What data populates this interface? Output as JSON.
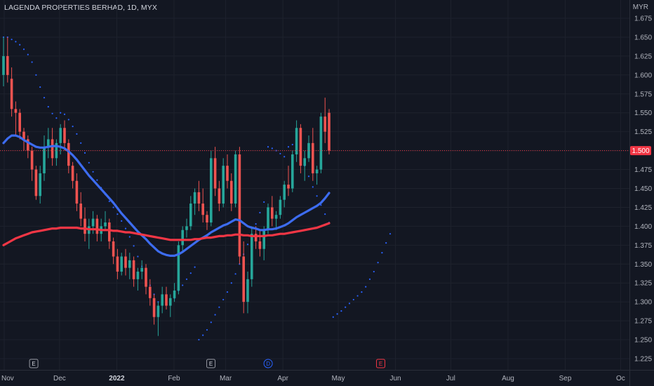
{
  "chart_data": {
    "type": "candlestick",
    "title": "LAGENDA PROPERTIES BERHAD, 1D, MYX",
    "currency": "MYR",
    "last_price": "1.500",
    "y_ticks": [
      "1.675",
      "1.650",
      "1.625",
      "1.600",
      "1.575",
      "1.550",
      "1.525",
      "1.475",
      "1.450",
      "1.425",
      "1.400",
      "1.375",
      "1.350",
      "1.325",
      "1.300",
      "1.275",
      "1.250",
      "1.225"
    ],
    "ylim": [
      1.215,
      1.685
    ],
    "x_ticks": [
      {
        "label": "Nov",
        "day": 0
      },
      {
        "label": "Dec",
        "day": 30
      },
      {
        "label": "2022",
        "day": 61,
        "bold": true
      },
      {
        "label": "Feb",
        "day": 92
      },
      {
        "label": "Mar",
        "day": 120
      },
      {
        "label": "Apr",
        "day": 151
      },
      {
        "label": "May",
        "day": 181
      },
      {
        "label": "Jun",
        "day": 212
      },
      {
        "label": "Jul",
        "day": 242
      },
      {
        "label": "Aug",
        "day": 273
      },
      {
        "label": "Sep",
        "day": 304
      },
      {
        "label": "Oc",
        "day": 334
      }
    ],
    "events": [
      {
        "label": "E",
        "day": 16,
        "kind": "earnings"
      },
      {
        "label": "E",
        "day": 112,
        "kind": "earnings"
      },
      {
        "label": "D",
        "day": 143,
        "kind": "dividend"
      },
      {
        "label": "E",
        "day": 204,
        "kind": "earnings-upcoming"
      }
    ],
    "candles": [
      [
        1.6,
        1.65,
        1.585,
        1.625
      ],
      [
        1.625,
        1.65,
        1.59,
        1.6
      ],
      [
        1.595,
        1.61,
        1.545,
        1.555
      ],
      [
        1.555,
        1.565,
        1.52,
        1.55
      ],
      [
        1.55,
        1.555,
        1.515,
        1.525
      ],
      [
        1.525,
        1.53,
        1.5,
        1.515
      ],
      [
        1.515,
        1.52,
        1.49,
        1.5
      ],
      [
        1.5,
        1.505,
        1.46,
        1.475
      ],
      [
        1.475,
        1.48,
        1.435,
        1.44
      ],
      [
        1.44,
        1.48,
        1.43,
        1.47
      ],
      [
        1.47,
        1.52,
        1.46,
        1.505
      ],
      [
        1.505,
        1.53,
        1.49,
        1.515
      ],
      [
        1.515,
        1.53,
        1.48,
        1.49
      ],
      [
        1.49,
        1.515,
        1.48,
        1.51
      ],
      [
        1.51,
        1.535,
        1.495,
        1.53
      ],
      [
        1.53,
        1.54,
        1.5,
        1.51
      ],
      [
        1.51,
        1.515,
        1.47,
        1.48
      ],
      [
        1.48,
        1.485,
        1.45,
        1.46
      ],
      [
        1.46,
        1.47,
        1.42,
        1.43
      ],
      [
        1.43,
        1.445,
        1.4,
        1.41
      ],
      [
        1.41,
        1.425,
        1.38,
        1.39
      ],
      [
        1.39,
        1.41,
        1.37,
        1.4
      ],
      [
        1.4,
        1.42,
        1.39,
        1.41
      ],
      [
        1.41,
        1.415,
        1.38,
        1.39
      ],
      [
        1.39,
        1.41,
        1.38,
        1.4
      ],
      [
        1.4,
        1.42,
        1.395,
        1.405
      ],
      [
        1.405,
        1.41,
        1.37,
        1.38
      ],
      [
        1.38,
        1.385,
        1.35,
        1.36
      ],
      [
        1.36,
        1.37,
        1.33,
        1.34
      ],
      [
        1.34,
        1.365,
        1.335,
        1.36
      ],
      [
        1.36,
        1.37,
        1.335,
        1.345
      ],
      [
        1.345,
        1.365,
        1.33,
        1.355
      ],
      [
        1.355,
        1.36,
        1.32,
        1.33
      ],
      [
        1.33,
        1.345,
        1.315,
        1.34
      ],
      [
        1.34,
        1.355,
        1.33,
        1.345
      ],
      [
        1.345,
        1.35,
        1.31,
        1.32
      ],
      [
        1.32,
        1.33,
        1.295,
        1.305
      ],
      [
        1.305,
        1.31,
        1.27,
        1.28
      ],
      [
        1.28,
        1.3,
        1.255,
        1.295
      ],
      [
        1.295,
        1.32,
        1.285,
        1.31
      ],
      [
        1.31,
        1.32,
        1.29,
        1.295
      ],
      [
        1.295,
        1.31,
        1.28,
        1.305
      ],
      [
        1.305,
        1.325,
        1.3,
        1.315
      ],
      [
        1.315,
        1.38,
        1.31,
        1.375
      ],
      [
        1.375,
        1.4,
        1.365,
        1.395
      ],
      [
        1.395,
        1.41,
        1.385,
        1.4
      ],
      [
        1.4,
        1.44,
        1.395,
        1.43
      ],
      [
        1.43,
        1.45,
        1.415,
        1.445
      ],
      [
        1.445,
        1.46,
        1.42,
        1.43
      ],
      [
        1.43,
        1.45,
        1.405,
        1.415
      ],
      [
        1.415,
        1.42,
        1.395,
        1.405
      ],
      [
        1.405,
        1.5,
        1.4,
        1.49
      ],
      [
        1.49,
        1.505,
        1.44,
        1.45
      ],
      [
        1.45,
        1.46,
        1.42,
        1.43
      ],
      [
        1.43,
        1.49,
        1.425,
        1.48
      ],
      [
        1.48,
        1.495,
        1.45,
        1.46
      ],
      [
        1.46,
        1.47,
        1.42,
        1.43
      ],
      [
        1.43,
        1.5,
        1.425,
        1.495
      ],
      [
        1.495,
        1.505,
        1.35,
        1.36
      ],
      [
        1.36,
        1.38,
        1.285,
        1.3
      ],
      [
        1.3,
        1.34,
        1.285,
        1.33
      ],
      [
        1.33,
        1.4,
        1.32,
        1.39
      ],
      [
        1.39,
        1.4,
        1.37,
        1.38
      ],
      [
        1.38,
        1.395,
        1.36,
        1.37
      ],
      [
        1.37,
        1.4,
        1.355,
        1.395
      ],
      [
        1.395,
        1.43,
        1.39,
        1.425
      ],
      [
        1.425,
        1.44,
        1.4,
        1.41
      ],
      [
        1.41,
        1.42,
        1.395,
        1.415
      ],
      [
        1.415,
        1.44,
        1.41,
        1.435
      ],
      [
        1.435,
        1.46,
        1.425,
        1.455
      ],
      [
        1.455,
        1.48,
        1.44,
        1.45
      ],
      [
        1.45,
        1.5,
        1.445,
        1.495
      ],
      [
        1.495,
        1.54,
        1.485,
        1.53
      ],
      [
        1.53,
        1.535,
        1.47,
        1.48
      ],
      [
        1.48,
        1.5,
        1.46,
        1.49
      ],
      [
        1.49,
        1.52,
        1.485,
        1.51
      ],
      [
        1.51,
        1.53,
        1.46,
        1.47
      ],
      [
        1.47,
        1.48,
        1.455,
        1.475
      ],
      [
        1.475,
        1.55,
        1.47,
        1.545
      ],
      [
        1.545,
        1.57,
        1.51,
        1.525
      ],
      [
        1.55,
        1.555,
        1.495,
        1.5
      ]
    ],
    "series": [
      {
        "name": "",
        "color": "#3d6cf0",
        "values": [
          1.51,
          1.516,
          1.52,
          1.52,
          1.518,
          1.514,
          1.511,
          1.508,
          1.505,
          1.504,
          1.504,
          1.505,
          1.506,
          1.506,
          1.505,
          1.503,
          1.499,
          1.494,
          1.488,
          1.481,
          1.474,
          1.467,
          1.461,
          1.455,
          1.449,
          1.443,
          1.437,
          1.431,
          1.424,
          1.417,
          1.411,
          1.405,
          1.399,
          1.393,
          1.388,
          1.383,
          1.377,
          1.372,
          1.367,
          1.364,
          1.362,
          1.361,
          1.361,
          1.363,
          1.366,
          1.37,
          1.374,
          1.378,
          1.382,
          1.385,
          1.388,
          1.392,
          1.395,
          1.398,
          1.401,
          1.403,
          1.406,
          1.409,
          1.408,
          1.404,
          1.4,
          1.398,
          1.397,
          1.395,
          1.395,
          1.396,
          1.396,
          1.397,
          1.399,
          1.401,
          1.404,
          1.408,
          1.412,
          1.415,
          1.418,
          1.421,
          1.424,
          1.427,
          1.431,
          1.437,
          1.444
        ]
      },
      {
        "name": "",
        "color": "#f23645",
        "values": [
          1.375,
          1.378,
          1.381,
          1.384,
          1.386,
          1.388,
          1.39,
          1.392,
          1.393,
          1.394,
          1.395,
          1.396,
          1.397,
          1.397,
          1.398,
          1.398,
          1.398,
          1.398,
          1.398,
          1.397,
          1.397,
          1.396,
          1.396,
          1.396,
          1.395,
          1.395,
          1.395,
          1.394,
          1.394,
          1.393,
          1.392,
          1.392,
          1.391,
          1.39,
          1.389,
          1.388,
          1.387,
          1.386,
          1.385,
          1.384,
          1.383,
          1.382,
          1.382,
          1.382,
          1.382,
          1.382,
          1.382,
          1.383,
          1.383,
          1.384,
          1.385,
          1.385,
          1.386,
          1.387,
          1.387,
          1.388,
          1.388,
          1.389,
          1.389,
          1.388,
          1.388,
          1.387,
          1.387,
          1.387,
          1.387,
          1.388,
          1.388,
          1.389,
          1.39,
          1.39,
          1.391,
          1.392,
          1.393,
          1.394,
          1.395,
          1.396,
          1.397,
          1.398,
          1.4,
          1.402,
          1.404
        ]
      }
    ],
    "psar": [
      [
        0,
        1.65
      ],
      [
        1,
        1.65
      ],
      [
        2,
        1.647
      ],
      [
        3,
        1.644
      ],
      [
        4,
        1.64
      ],
      [
        5,
        1.634
      ],
      [
        6,
        1.627
      ],
      [
        7,
        1.617
      ],
      [
        8,
        1.6
      ],
      [
        9,
        1.584
      ],
      [
        10,
        1.57
      ],
      [
        11,
        1.558
      ],
      [
        12,
        1.549
      ],
      [
        13,
        1.543
      ],
      [
        14,
        1.55
      ],
      [
        15,
        1.548
      ],
      [
        16,
        1.541
      ],
      [
        17,
        1.532
      ],
      [
        18,
        1.522
      ],
      [
        19,
        1.51
      ],
      [
        20,
        1.497
      ],
      [
        21,
        1.484
      ],
      [
        22,
        1.472
      ],
      [
        23,
        1.461
      ],
      [
        24,
        1.451
      ],
      [
        25,
        1.442
      ],
      [
        26,
        1.433
      ],
      [
        27,
        1.425
      ],
      [
        28,
        1.416
      ],
      [
        29,
        1.407
      ],
      [
        30,
        1.397
      ],
      [
        31,
        1.386
      ],
      [
        32,
        1.374
      ],
      [
        33,
        1.36
      ],
      [
        34,
        1.347
      ],
      [
        35,
        1.334
      ],
      [
        36,
        1.322
      ],
      [
        37,
        1.31
      ],
      [
        38,
        1.3
      ],
      [
        39,
        1.3
      ],
      [
        40,
        1.302
      ],
      [
        41,
        1.303
      ],
      [
        42,
        1.305
      ],
      [
        43,
        1.315
      ],
      [
        44,
        1.322
      ],
      [
        45,
        1.33
      ],
      [
        46,
        1.338
      ],
      [
        47,
        1.346
      ],
      [
        48,
        1.25
      ],
      [
        49,
        1.256
      ],
      [
        50,
        1.263
      ],
      [
        51,
        1.273
      ],
      [
        52,
        1.283
      ],
      [
        53,
        1.293
      ],
      [
        54,
        1.303
      ],
      [
        55,
        1.313
      ],
      [
        56,
        1.325
      ],
      [
        57,
        1.337
      ],
      [
        58,
        1.35
      ],
      [
        59,
        1.363
      ],
      [
        60,
        1.376
      ],
      [
        61,
        1.389
      ],
      [
        62,
        1.403
      ],
      [
        63,
        1.418
      ],
      [
        64,
        1.432
      ],
      [
        65,
        1.505
      ],
      [
        66,
        1.503
      ],
      [
        67,
        1.5
      ],
      [
        68,
        1.496
      ],
      [
        69,
        1.492
      ],
      [
        70,
        1.505
      ],
      [
        71,
        1.508
      ],
      [
        72,
        1.51
      ],
      [
        73,
        1.494
      ],
      [
        74,
        1.48
      ],
      [
        75,
        1.466
      ],
      [
        76,
        1.452
      ],
      [
        77,
        1.44
      ],
      [
        78,
        1.428
      ],
      [
        79,
        1.416
      ],
      [
        80,
        1.405
      ],
      [
        81,
        1.28
      ],
      [
        82,
        1.284
      ],
      [
        83,
        1.288
      ],
      [
        84,
        1.293
      ],
      [
        85,
        1.298
      ],
      [
        86,
        1.303
      ],
      [
        87,
        1.308
      ],
      [
        88,
        1.313
      ],
      [
        89,
        1.32
      ],
      [
        90,
        1.33
      ],
      [
        91,
        1.34
      ],
      [
        92,
        1.352
      ],
      [
        93,
        1.365
      ],
      [
        94,
        1.378
      ],
      [
        95,
        1.39
      ]
    ]
  }
}
